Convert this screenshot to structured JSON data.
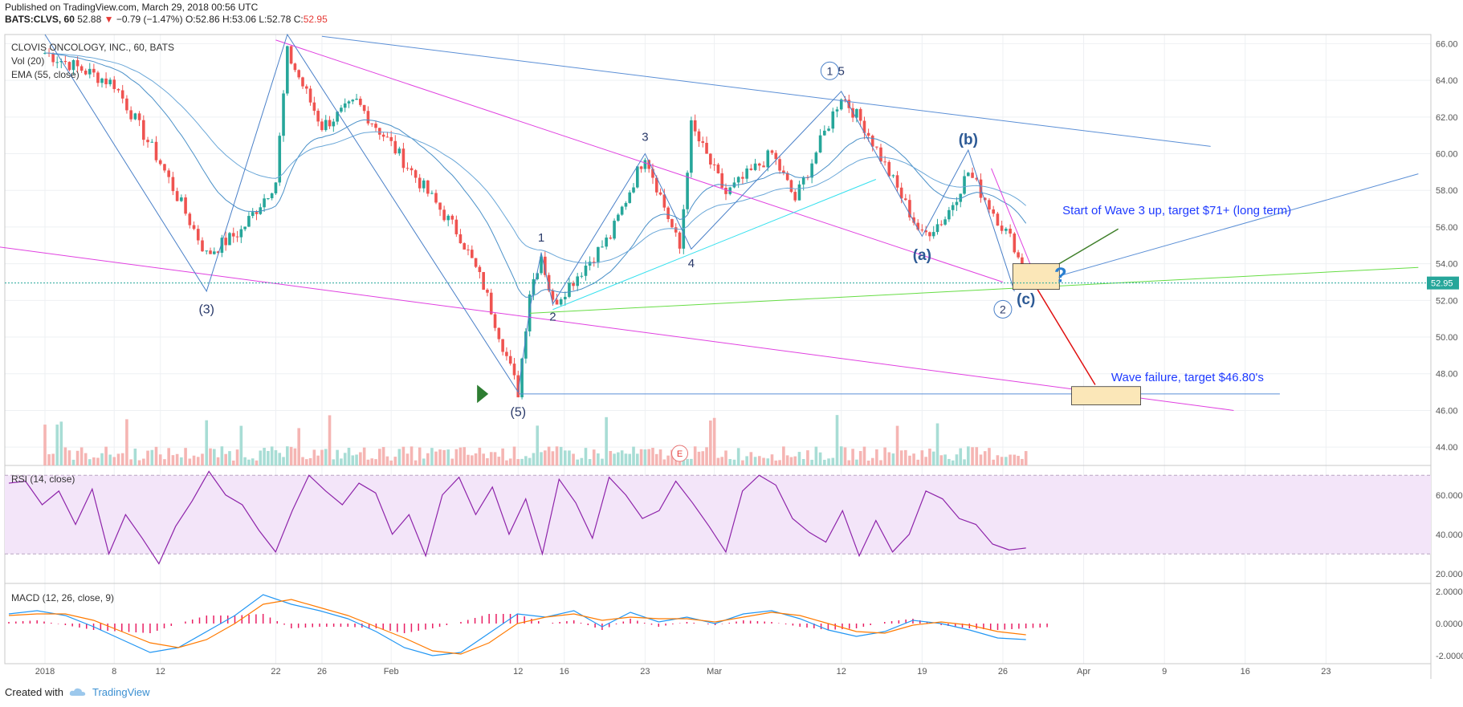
{
  "header": {
    "published": "Published on TradingView.com, March 29, 2018 00:56 UTC",
    "symbol": "BATS:CLVS, 60",
    "last": "52.88",
    "change": "−0.79 (−1.47%)",
    "o_label": "O:",
    "o": "52.86",
    "h_label": "H:",
    "h": "53.06",
    "l_label": "L:",
    "l": "52.78",
    "c_label": "C:",
    "c": "52.95"
  },
  "legend": {
    "title": "CLOVIS ONCOLOGY, INC., 60, BATS",
    "vol": "Vol (20)",
    "ema": "EMA (55, close)"
  },
  "colors": {
    "up": "#26a69a",
    "down": "#ef5350",
    "ema": "#4a90c8",
    "channel": "#e040e0",
    "annotation": "#2a3a6a",
    "rsi": "#8e24aa",
    "rsi_band": "#f3e5f9",
    "macd": "#2196f3",
    "signal": "#ff7a00",
    "hist": "#e91e63",
    "green_line": "#66dd44",
    "cyan_line": "#33e0ee",
    "price_label": "#26a69a",
    "wave3": "#1e3aff",
    "target_box": "#fbe7b8"
  },
  "chart_data": {
    "type": "candlestick",
    "symbol": "CLVS",
    "interval": "60",
    "ylim": [
      43,
      66.5
    ],
    "y_ticks": [
      "66.00",
      "64.00",
      "62.00",
      "60.00",
      "58.00",
      "56.00",
      "54.00",
      "52.00",
      "50.00",
      "48.00",
      "46.00",
      "44.00"
    ],
    "x_ticks": [
      "2018",
      "8",
      "12",
      "22",
      "26",
      "Feb",
      "12",
      "16",
      "23",
      "Mar",
      "12",
      "19",
      "26",
      "Apr",
      "9",
      "16",
      "23"
    ],
    "last_price_label": "52.95",
    "wave_labels": [
      "(3)",
      "(5)",
      "1",
      "2",
      "3",
      "4",
      "1",
      "5",
      "(a)",
      "(b)",
      "2",
      "(c)",
      "?"
    ],
    "annotations": [
      "Start of Wave 3 up, target $71+ (long term)",
      "Wave failure, target $46.80's"
    ],
    "earnings_marker": "E",
    "price_path": [
      {
        "date": "2018-01-02",
        "close": 65.5
      },
      {
        "date": "2018-01-08",
        "close": 63.8
      },
      {
        "date": "2018-01-12",
        "close": 59.5
      },
      {
        "date": "2018-01-16",
        "close": 54.5
      },
      {
        "date": "2018-01-19",
        "close": 55.8
      },
      {
        "date": "2018-01-22",
        "close": 58.5
      },
      {
        "date": "2018-01-23",
        "close": 65.5
      },
      {
        "date": "2018-01-26",
        "close": 61.5
      },
      {
        "date": "2018-01-29",
        "close": 62.8
      },
      {
        "date": "2018-02-01",
        "close": 60.5
      },
      {
        "date": "2018-02-07",
        "close": 55.5
      },
      {
        "date": "2018-02-09",
        "close": 52.8
      },
      {
        "date": "2018-02-12",
        "close": 47.0
      },
      {
        "date": "2018-02-13",
        "close": 52.5
      },
      {
        "date": "2018-02-14",
        "close": 54.5
      },
      {
        "date": "2018-02-15",
        "close": 51.8
      },
      {
        "date": "2018-02-20",
        "close": 55.5
      },
      {
        "date": "2018-02-23",
        "close": 60.0
      },
      {
        "date": "2018-02-26",
        "close": 54.8
      },
      {
        "date": "2018-02-27",
        "close": 61.5
      },
      {
        "date": "2018-03-02",
        "close": 57.8
      },
      {
        "date": "2018-03-06",
        "close": 60.0
      },
      {
        "date": "2018-03-08",
        "close": 57.5
      },
      {
        "date": "2018-03-12",
        "close": 63.2
      },
      {
        "date": "2018-03-14",
        "close": 61.5
      },
      {
        "date": "2018-03-19",
        "close": 55.5
      },
      {
        "date": "2018-03-21",
        "close": 56.5
      },
      {
        "date": "2018-03-23",
        "close": 59.0
      },
      {
        "date": "2018-03-27",
        "close": 55.0
      },
      {
        "date": "2018-03-28",
        "close": 52.95
      }
    ],
    "rsi": {
      "label": "RSI (14, close)",
      "ylim": [
        15,
        75
      ],
      "ticks": [
        "60.0000",
        "40.0000",
        "20.0000"
      ],
      "bands": [
        70,
        30
      ],
      "points": [
        66,
        67,
        55,
        62,
        45,
        63,
        30,
        50,
        38,
        25,
        44,
        57,
        72,
        60,
        55,
        42,
        31,
        52,
        70,
        62,
        55,
        66,
        61,
        40,
        50,
        29,
        60,
        69,
        50,
        64,
        40,
        58,
        30,
        68,
        56,
        38,
        69,
        60,
        48,
        52,
        67,
        56,
        44,
        31,
        62,
        70,
        65,
        48,
        41,
        36,
        52,
        29,
        47,
        31,
        40,
        62,
        58,
        48,
        45,
        35,
        32,
        33
      ]
    },
    "macd": {
      "label": "MACD (12, 26, close, 9)",
      "ylim": [
        -2.5,
        2.5
      ],
      "ticks": [
        "2.0000",
        "0.0000",
        "-2.0000"
      ],
      "macd_line": [
        0.6,
        0.8,
        0.5,
        -0.2,
        -1.0,
        -1.8,
        -1.5,
        -0.5,
        0.5,
        1.8,
        1.2,
        0.8,
        0.3,
        -0.5,
        -1.5,
        -2.0,
        -1.8,
        -0.6,
        0.6,
        0.4,
        0.8,
        -0.2,
        0.7,
        0.1,
        0.4,
        0.0,
        0.6,
        0.8,
        0.3,
        -0.4,
        -0.8,
        -0.5,
        0.2,
        0.0,
        -0.4,
        -0.9,
        -1.0
      ],
      "signal_line": [
        0.5,
        0.6,
        0.6,
        0.2,
        -0.5,
        -1.2,
        -1.5,
        -1.0,
        0.0,
        1.2,
        1.5,
        1.0,
        0.5,
        -0.2,
        -0.9,
        -1.7,
        -1.9,
        -1.2,
        0.0,
        0.4,
        0.6,
        0.2,
        0.4,
        0.3,
        0.3,
        0.1,
        0.4,
        0.7,
        0.5,
        0.0,
        -0.5,
        -0.6,
        -0.1,
        0.1,
        -0.1,
        -0.5,
        -0.7
      ]
    }
  },
  "footer": {
    "created": "Created with",
    "brand": "TradingView"
  }
}
